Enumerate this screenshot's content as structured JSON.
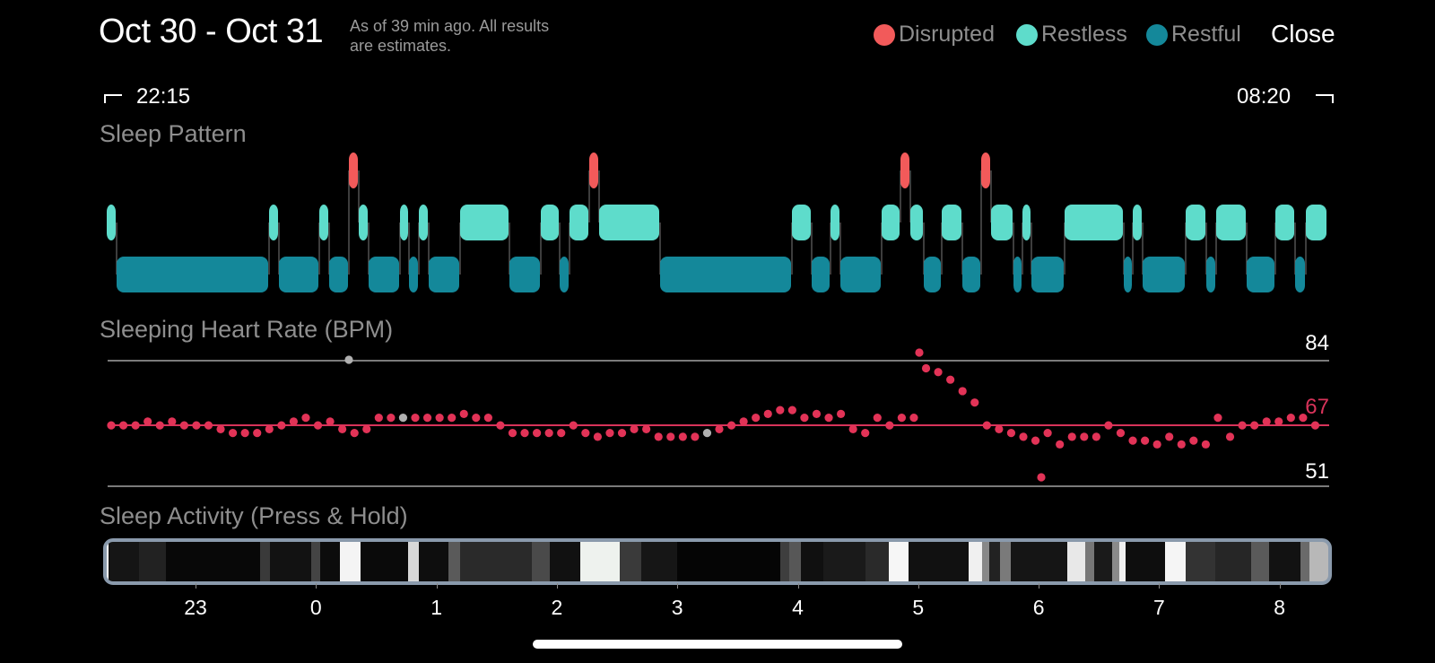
{
  "header": {
    "date_range": "Oct 30 - Oct 31",
    "as_of_line1": "As of 39 min ago. All results",
    "as_of_line2": "are estimates.",
    "legend": [
      {
        "label": "Disrupted",
        "color": "#f25a5a"
      },
      {
        "label": "Restless",
        "color": "#5edccb"
      },
      {
        "label": "Restful",
        "color": "#14889a"
      }
    ],
    "close_label": "Close"
  },
  "time_range": {
    "start": "22:15",
    "end": "08:20"
  },
  "sleep_pattern": {
    "title": "Sleep Pattern",
    "colors": {
      "disrupted": "#f25a5a",
      "restless": "#5edccb",
      "restful": "#14889a"
    }
  },
  "heart_rate": {
    "title": "Sleeping Heart Rate (BPM)",
    "max_label": "84",
    "min_label": "51",
    "avg_label": "67",
    "line_color": "#d8335a",
    "dot_color": "#e23357"
  },
  "activity": {
    "title": "Sleep Activity (Press & Hold)",
    "hour_labels": [
      "23",
      "0",
      "1",
      "2",
      "3",
      "4",
      "5",
      "6",
      "7",
      "8"
    ]
  }
}
